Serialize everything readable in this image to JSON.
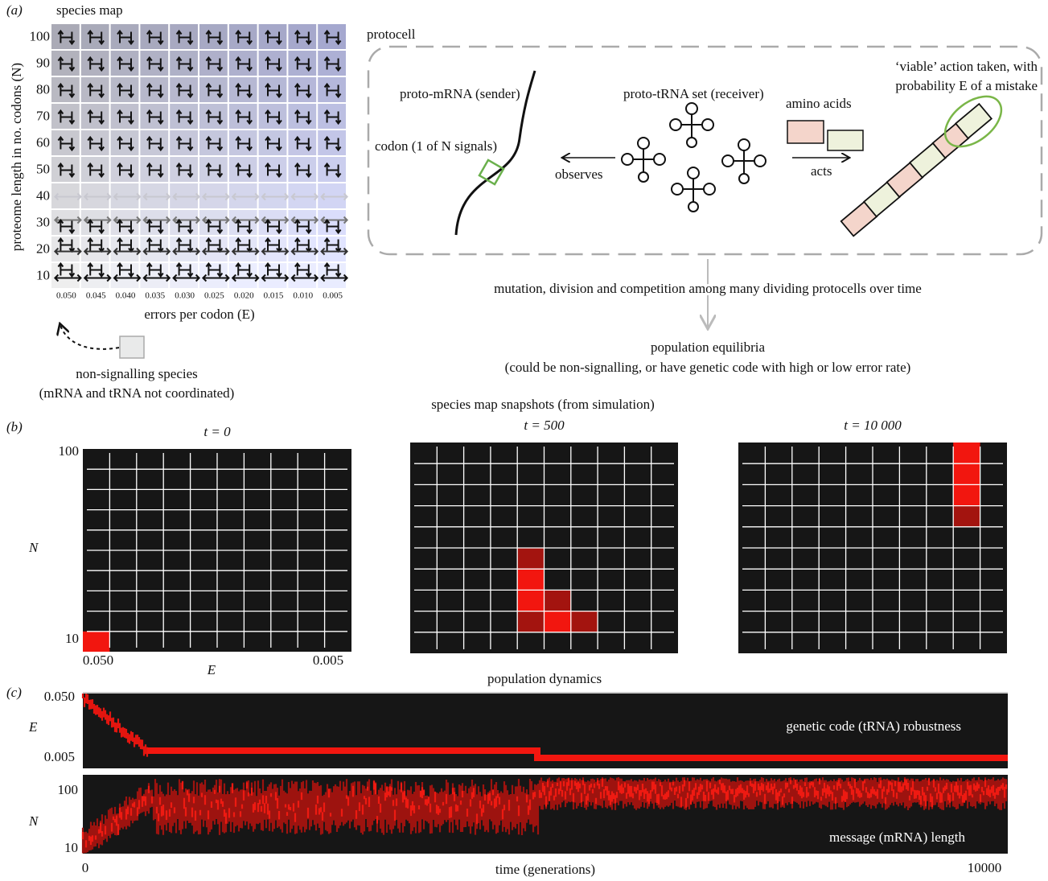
{
  "panel_a": {
    "label": "(a)",
    "title": "species map",
    "y_axis_label": "proteome length in no. codons (N)",
    "y_ticks": [
      "100",
      "90",
      "80",
      "70",
      "60",
      "50",
      "40",
      "30",
      "20",
      "10"
    ],
    "x_ticks": [
      "0.050",
      "0.045",
      "0.040",
      "0.035",
      "0.030",
      "0.025",
      "0.020",
      "0.015",
      "0.010",
      "0.005"
    ],
    "x_axis_label": "errors per codon (E)",
    "legend": [
      "non-signalling species",
      "(mRNA and tRNA not coordinated)"
    ]
  },
  "protocell": {
    "title": "protocell",
    "sender": "proto-mRNA (sender)",
    "codon": "codon (1 of N signals)",
    "observes": "observes",
    "receiver": "proto-tRNA set (receiver)",
    "amino_acids": "amino acids",
    "acts": "acts",
    "action": [
      "‘viable’ action taken, with",
      "probability E of a mistake"
    ]
  },
  "flow": {
    "process": "mutation, division and competition among many dividing protocells over time",
    "result": "population equilibria",
    "result_note": "(could be non-signalling, or have genetic code with high or low error rate)"
  },
  "panel_b": {
    "label": "(b)",
    "title": "species map snapshots (from simulation)",
    "snapshots": [
      {
        "title": "t = 0"
      },
      {
        "title": "t = 500"
      },
      {
        "title": "t = 10 000"
      }
    ],
    "y_axis_label": "N",
    "y_ticks": [
      "100",
      "10"
    ],
    "x_axis_label": "E",
    "x_ticks": [
      "0.050",
      "0.005"
    ]
  },
  "panel_c": {
    "label": "(c)",
    "title": "population dynamics",
    "top": {
      "y_axis_label": "E",
      "y_ticks": [
        "0.050",
        "0.005"
      ],
      "caption": "genetic code (tRNA) robustness"
    },
    "bottom": {
      "y_axis_label": "N",
      "y_ticks": [
        "100",
        "10"
      ],
      "caption": "message (mRNA) length"
    },
    "x_ticks": [
      "0",
      "10000"
    ],
    "x_axis_label": "time (generations)"
  }
}
